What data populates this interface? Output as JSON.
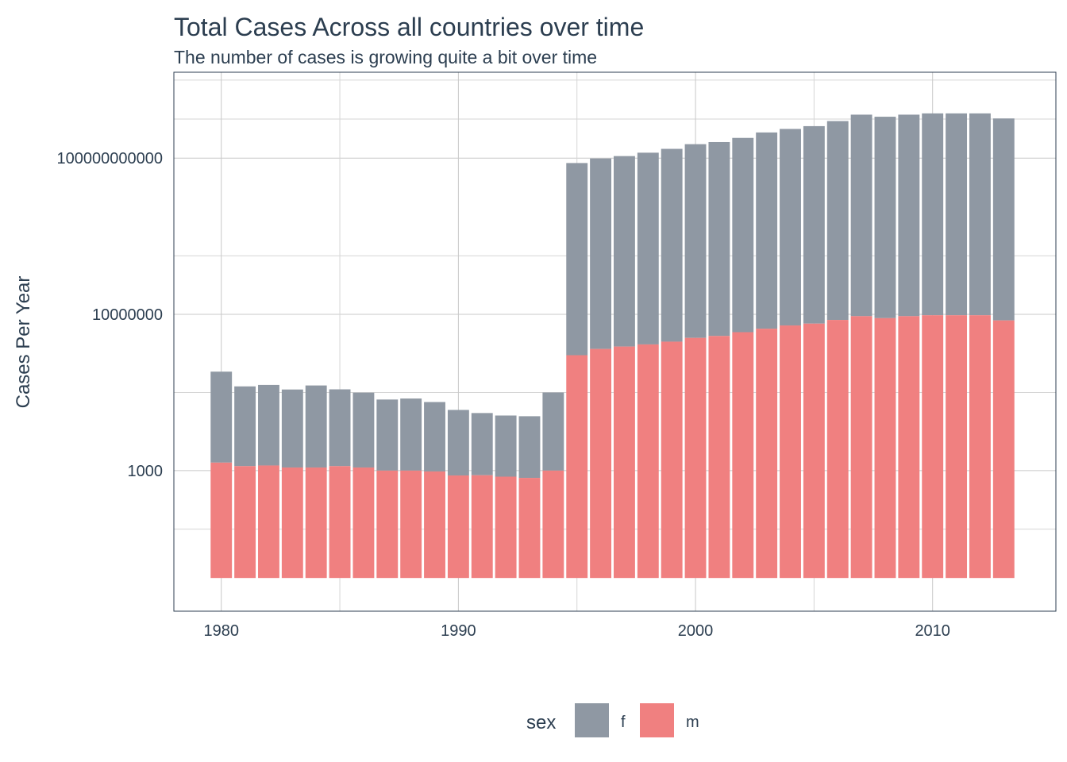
{
  "chart_data": {
    "type": "bar",
    "stacked": true,
    "scale": "log10",
    "title": "Total Cases Across all countries over time",
    "subtitle": "The number of cases is growing quite a bit over time",
    "xlabel": "",
    "ylabel": "Cases Per Year",
    "x_ticks": [
      "1980",
      "1990",
      "2000",
      "2010"
    ],
    "x_tick_values": [
      1980,
      1990,
      2000,
      2010
    ],
    "xlim": [
      1978,
      2015.2
    ],
    "y_ticks": [
      "1000",
      "10000000",
      "100000000000"
    ],
    "y_tick_values": [
      1000,
      10000000,
      100000000000
    ],
    "ylim_log10": [
      -0.6,
      13.2
    ],
    "bar_base_log10": 0.25,
    "x": [
      1980,
      1981,
      1982,
      1983,
      1984,
      1985,
      1986,
      1987,
      1988,
      1989,
      1990,
      1991,
      1992,
      1993,
      1994,
      1995,
      1996,
      1997,
      1998,
      1999,
      2000,
      2001,
      2002,
      2003,
      2004,
      2005,
      2006,
      2007,
      2008,
      2009,
      2010,
      2011,
      2012,
      2013
    ],
    "series": [
      {
        "name": "m",
        "color": "#f08080",
        "values": [
          1600,
          1300,
          1350,
          1200,
          1200,
          1300,
          1200,
          1000,
          1000,
          950,
          750,
          760,
          700,
          650,
          1000,
          900000,
          1300000,
          1500000,
          1700000,
          2000000,
          2500000,
          2800000,
          3500000,
          4300000,
          5200000,
          5800000,
          7200000,
          9000000,
          8000000,
          9000000,
          9500000,
          9500000,
          9500000,
          7000000
        ]
      },
      {
        "name": "f",
        "color": "#8f98a3",
        "values": [
          340000,
          142000,
          155000,
          118000,
          150000,
          119000,
          98000,
          65000,
          69000,
          56000,
          35000,
          29000,
          25000,
          24000,
          99000,
          75000000000,
          98000000000,
          113000000000,
          138000000000,
          173000000000,
          228000000000,
          258000000000,
          330000000000,
          455000000000,
          560000000000,
          660000000000,
          890000000000,
          1300000000000,
          1150000000000,
          1300000000000,
          1400000000000,
          1400000000000,
          1400000000000,
          1040000000000
        ]
      }
    ],
    "legend": {
      "title": "sex",
      "entries": [
        "f",
        "m"
      ],
      "position": "bottom"
    }
  }
}
